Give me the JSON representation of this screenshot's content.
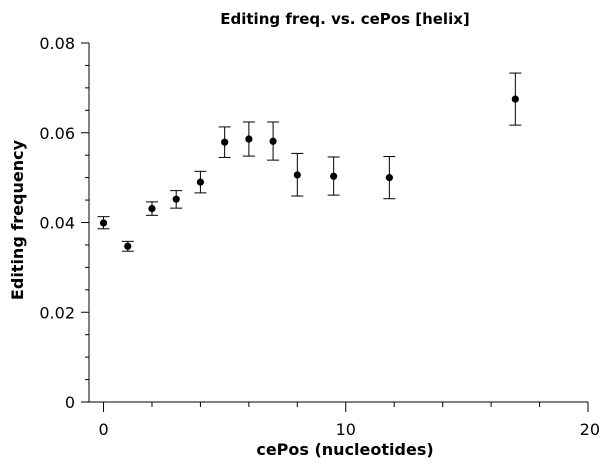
{
  "chart_data": {
    "type": "scatter",
    "title": "Editing freq. vs. cePos [helix]",
    "xlabel": "cePos (nucleotides)",
    "ylabel": "Editing frequency",
    "xlim": [
      -0.6,
      20
    ],
    "ylim": [
      0,
      0.08
    ],
    "x_ticks": [
      0,
      10,
      20
    ],
    "x_tick_labels": [
      "0",
      "10",
      "20"
    ],
    "x_minor_step": 2,
    "y_ticks": [
      0,
      0.02,
      0.04,
      0.06,
      0.08
    ],
    "y_tick_labels": [
      "0",
      "0.02",
      "0.04",
      "0.06",
      "0.08"
    ],
    "y_minor_step": 0.005,
    "grid": false,
    "legend": "none",
    "marker_color": "#000000",
    "points": [
      {
        "x": 0,
        "y": 0.0399,
        "lo": 0.0386,
        "hi": 0.0413
      },
      {
        "x": 1,
        "y": 0.0347,
        "lo": 0.0336,
        "hi": 0.0358
      },
      {
        "x": 2,
        "y": 0.0431,
        "lo": 0.0416,
        "hi": 0.0446
      },
      {
        "x": 3,
        "y": 0.0452,
        "lo": 0.0432,
        "hi": 0.0471
      },
      {
        "x": 4,
        "y": 0.049,
        "lo": 0.0466,
        "hi": 0.0514
      },
      {
        "x": 5,
        "y": 0.0579,
        "lo": 0.0545,
        "hi": 0.0613
      },
      {
        "x": 6,
        "y": 0.0586,
        "lo": 0.0548,
        "hi": 0.0624
      },
      {
        "x": 7,
        "y": 0.0581,
        "lo": 0.0539,
        "hi": 0.0624
      },
      {
        "x": 8,
        "y": 0.0506,
        "lo": 0.0459,
        "hi": 0.0554
      },
      {
        "x": 9.5,
        "y": 0.0503,
        "lo": 0.0461,
        "hi": 0.0546
      },
      {
        "x": 11.8,
        "y": 0.05,
        "lo": 0.0453,
        "hi": 0.0547
      },
      {
        "x": 17,
        "y": 0.0675,
        "lo": 0.0617,
        "hi": 0.0733
      }
    ]
  }
}
